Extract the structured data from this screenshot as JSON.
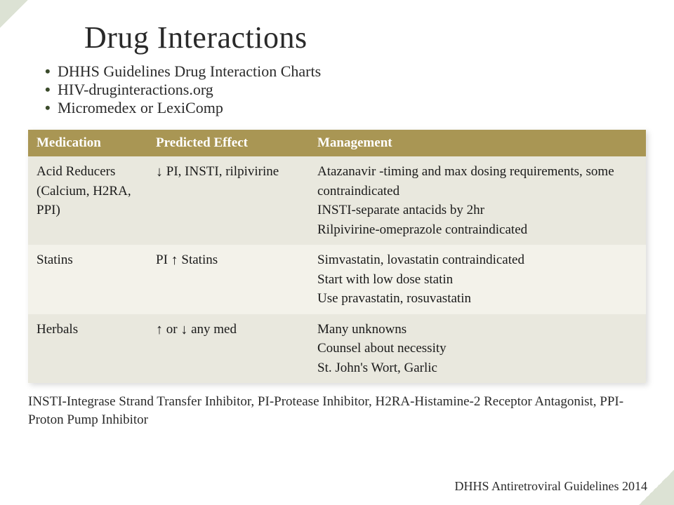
{
  "title": "Drug Interactions",
  "bullets": [
    "DHHS Guidelines Drug Interaction Charts",
    "HIV-druginteractions.org",
    "Micromedex or LexiComp"
  ],
  "table": {
    "headers": {
      "medication": "Medication",
      "effect": "Predicted Effect",
      "management": "Management"
    },
    "rows": [
      {
        "medication": "Acid Reducers (Calcium, H2RA, PPI)",
        "effect_arrow": "↓",
        "effect_text": " PI, INSTI, rilpivirine",
        "management": "Atazanavir -timing and max dosing requirements, some contraindicated\nINSTI-separate antacids by 2hr\nRilpivirine-omeprazole contraindicated"
      },
      {
        "medication": "Statins",
        "effect_prefix": "PI ",
        "effect_arrow": "↑",
        "effect_text": " Statins",
        "management": "Simvastatin, lovastatin contraindicated\nStart with low dose statin\nUse pravastatin, rosuvastatin"
      },
      {
        "medication": "Herbals",
        "effect_arrow": "↑",
        "effect_mid": "   or  ",
        "effect_arrow2": "↓",
        "effect_text": "   any med",
        "management": "Many unknowns\nCounsel about necessity\nSt. John's Wort, Garlic"
      }
    ]
  },
  "footnote": "INSTI-Integrase Strand Transfer Inhibitor, PI-Protease Inhibitor, H2RA-Histamine-2 Receptor Antagonist, PPI-Proton Pump Inhibitor",
  "citation": "DHHS Antiretroviral Guidelines 2014",
  "styling": {
    "header_bg": "#a99654",
    "header_text": "#ffffff",
    "row_alt_bg": "#e9e8de",
    "row_base_bg": "#f3f2ea",
    "title_fontsize": 44,
    "bullet_fontsize": 22,
    "table_fontsize": 19,
    "arrow_down": "↓",
    "arrow_up": "↑",
    "col_widths": {
      "medication": 170,
      "effect": 230
    }
  }
}
